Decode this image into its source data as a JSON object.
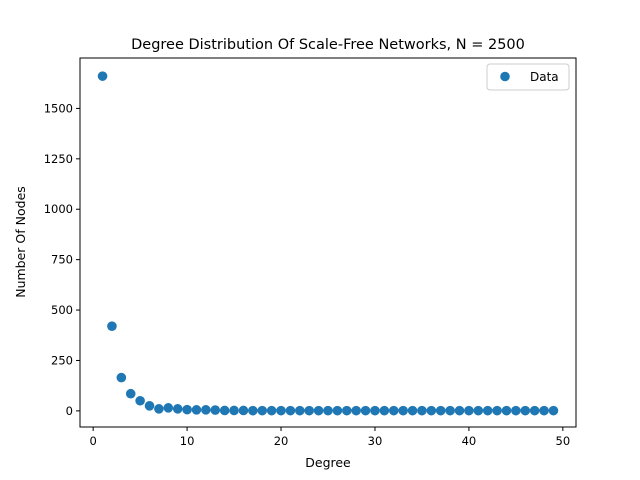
{
  "chart_data": {
    "type": "scatter",
    "title": "Degree Distribution Of Scale-Free Networks, N = 2500",
    "xlabel": "Degree",
    "ylabel": "Number Of Nodes",
    "xlim": [
      -1.4,
      51.4
    ],
    "ylim": [
      -80,
      1750
    ],
    "xticks": [
      0,
      10,
      20,
      30,
      40,
      50
    ],
    "yticks": [
      0,
      250,
      500,
      750,
      1000,
      1250,
      1500
    ],
    "grid": false,
    "legend": {
      "position": "top-right"
    },
    "series": [
      {
        "name": "Data",
        "color": "#1f77b4",
        "marker": "circle",
        "x": [
          1,
          2,
          3,
          4,
          5,
          6,
          7,
          8,
          9,
          10,
          11,
          12,
          13,
          14,
          15,
          16,
          17,
          18,
          19,
          20,
          21,
          22,
          23,
          24,
          25,
          26,
          27,
          28,
          29,
          30,
          31,
          32,
          33,
          34,
          35,
          36,
          37,
          38,
          39,
          40,
          41,
          42,
          43,
          44,
          45,
          46,
          47,
          48,
          49
        ],
        "y": [
          1660,
          420,
          165,
          85,
          50,
          25,
          10,
          15,
          10,
          6,
          5,
          5,
          4,
          2,
          2,
          2,
          1,
          1,
          1,
          1,
          1,
          1,
          1,
          1,
          1,
          1,
          1,
          1,
          1,
          1,
          1,
          1,
          1,
          1,
          1,
          1,
          1,
          1,
          1,
          1,
          1,
          1,
          1,
          1,
          1,
          1,
          1,
          1,
          1
        ]
      }
    ]
  }
}
